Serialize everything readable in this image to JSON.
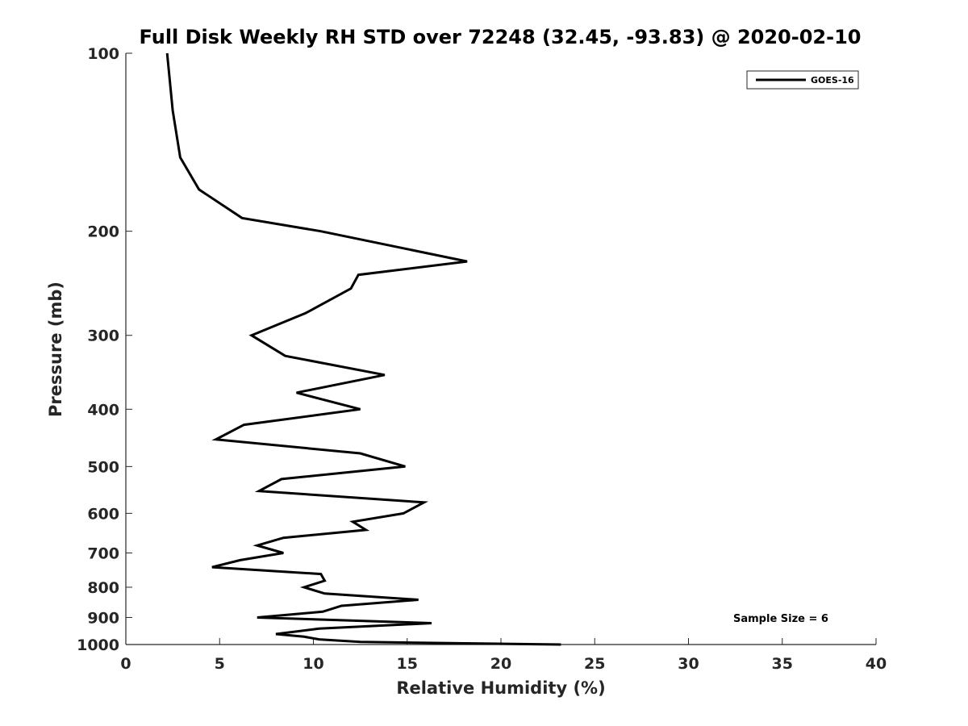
{
  "chart_data": {
    "type": "line",
    "title": "Full Disk Weekly RH STD over 72248 (32.45, -93.83) @ 2020-02-10",
    "xlabel": "Relative Humidity (%)",
    "ylabel": "Pressure (mb)",
    "xlim": [
      0,
      40
    ],
    "ylim": [
      100,
      1000
    ],
    "yscale": "log",
    "yreversed": true,
    "x_ticks": [
      "0",
      "5",
      "10",
      "15",
      "20",
      "25",
      "30",
      "35",
      "40"
    ],
    "y_ticks": [
      "100",
      "200",
      "300",
      "400",
      "500",
      "600",
      "700",
      "800",
      "900",
      "1000"
    ],
    "legend_position": "top-right",
    "annotation": "Sample Size = 6",
    "line_color": "#000000",
    "grid": false,
    "series": [
      {
        "name": "GOES-16",
        "points": [
          [
            2.2,
            100
          ],
          [
            2.5,
            125
          ],
          [
            2.9,
            150
          ],
          [
            3.9,
            170
          ],
          [
            6.2,
            190
          ],
          [
            10.4,
            200
          ],
          [
            18.2,
            225
          ],
          [
            12.4,
            237
          ],
          [
            12.0,
            250
          ],
          [
            9.6,
            275
          ],
          [
            6.7,
            300
          ],
          [
            8.5,
            325
          ],
          [
            13.8,
            350
          ],
          [
            9.1,
            375
          ],
          [
            12.5,
            400
          ],
          [
            6.3,
            425
          ],
          [
            4.8,
            450
          ],
          [
            12.5,
            475
          ],
          [
            14.9,
            500
          ],
          [
            8.3,
            525
          ],
          [
            7.1,
            550
          ],
          [
            15.9,
            575
          ],
          [
            14.8,
            600
          ],
          [
            12.1,
            620
          ],
          [
            12.8,
            640
          ],
          [
            8.4,
            660
          ],
          [
            7.0,
            680
          ],
          [
            8.4,
            700
          ],
          [
            6.1,
            720
          ],
          [
            4.6,
            740
          ],
          [
            10.4,
            760
          ],
          [
            10.6,
            780
          ],
          [
            9.5,
            800
          ],
          [
            10.6,
            820
          ],
          [
            15.6,
            840
          ],
          [
            11.5,
            860
          ],
          [
            10.5,
            880
          ],
          [
            7.0,
            900
          ],
          [
            16.3,
            920
          ],
          [
            10.3,
            940
          ],
          [
            8.0,
            960
          ],
          [
            9.5,
            970
          ],
          [
            10.3,
            980
          ],
          [
            12.5,
            990
          ],
          [
            23.2,
            1000
          ]
        ]
      }
    ]
  }
}
